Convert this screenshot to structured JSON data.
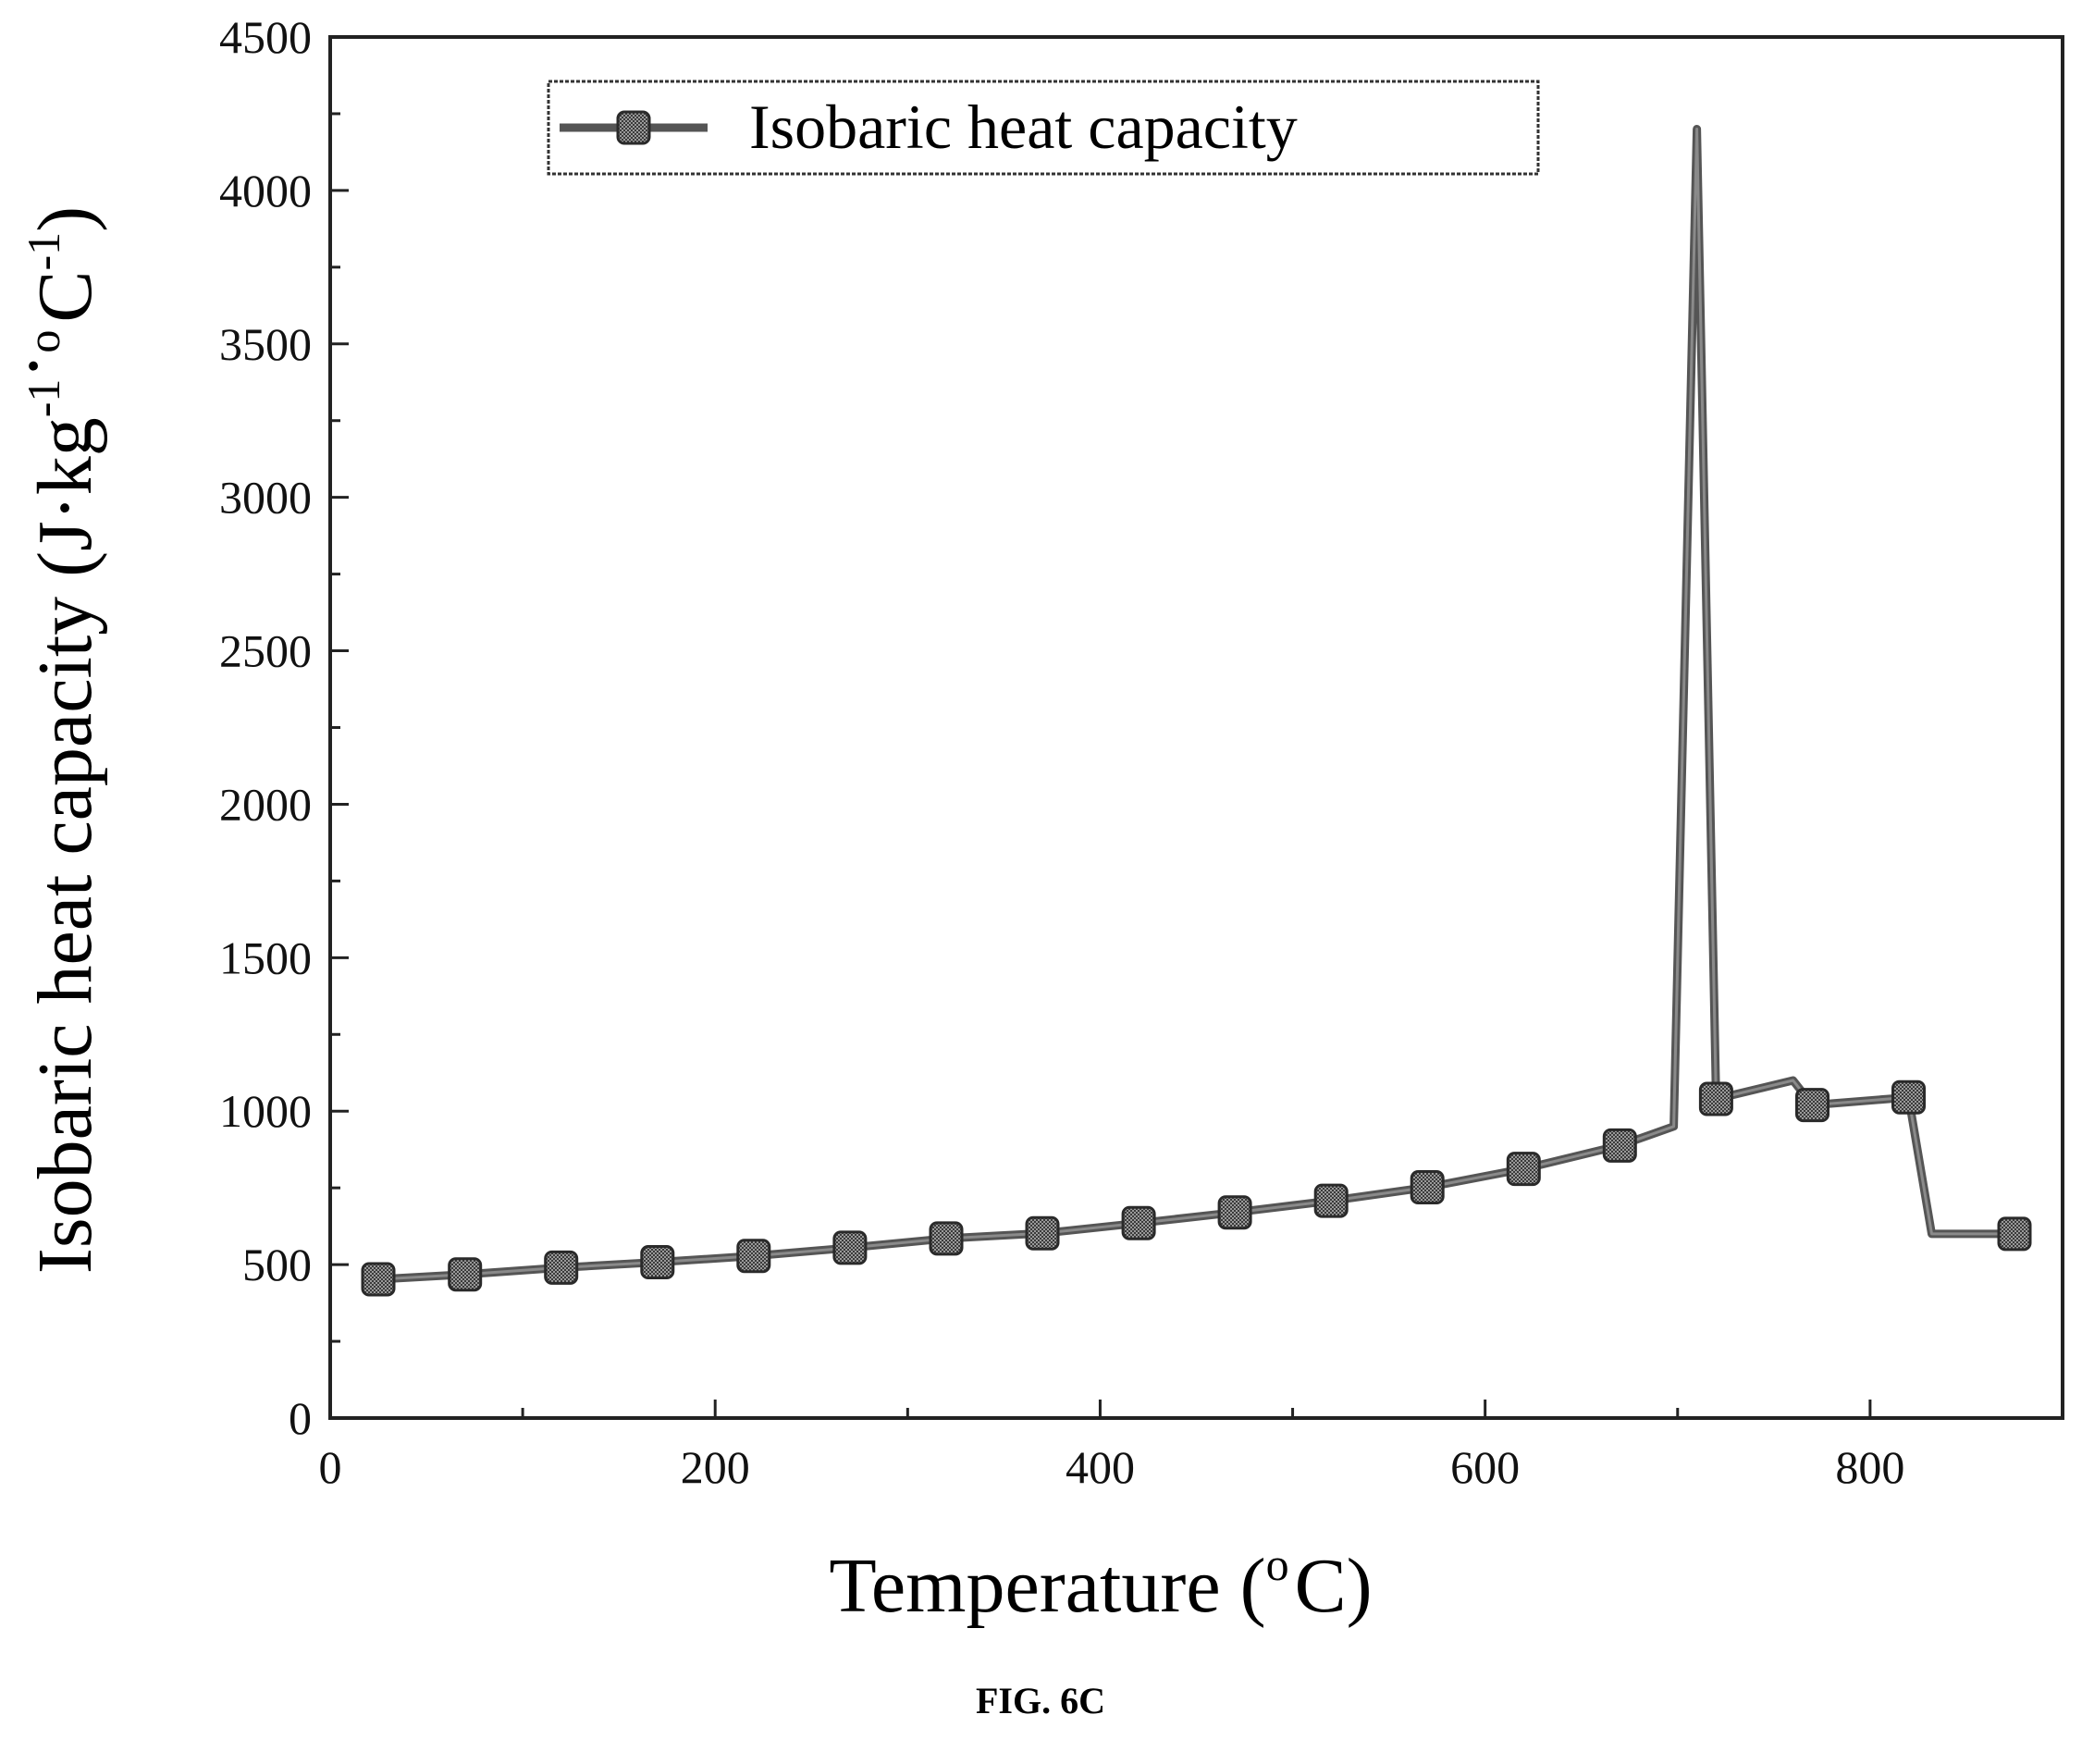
{
  "chart_data": {
    "type": "line",
    "title": "",
    "xlabel": "Temperature (",
    "xlabel_sup": "o",
    "xlabel_end": "C)",
    "ylabel": "Isobaric heat capacity (J·kg",
    "ylabel_sup1": "-1",
    "ylabel_mid": "·",
    "ylabel_sup2": "o",
    "ylabel_unit": "C",
    "ylabel_sup3": "-1",
    "ylabel_end": ")",
    "xlim": [
      0,
      900
    ],
    "ylim": [
      0,
      4500
    ],
    "x_ticks": [
      0,
      200,
      400,
      600,
      800
    ],
    "x_tick_labels": [
      "0",
      "200",
      "400",
      "600",
      "800"
    ],
    "x_minor_ticks": [
      100,
      300,
      500,
      700
    ],
    "y_ticks": [
      0,
      500,
      1000,
      1500,
      2000,
      2500,
      3000,
      3500,
      4000,
      4500
    ],
    "y_tick_labels": [
      "0",
      "500",
      "1000",
      "1500",
      "2000",
      "2500",
      "3000",
      "3500",
      "4000",
      "4500"
    ],
    "y_minor_ticks": [
      250,
      750,
      1250,
      1750,
      2250,
      2750,
      3250,
      3750,
      4250
    ],
    "grid": false,
    "legend_position": "top-center",
    "series": [
      {
        "name": "Isobaric heat capacity",
        "color": "#555555",
        "x": [
          25,
          70,
          120,
          170,
          220,
          270,
          320,
          370,
          420,
          470,
          520,
          570,
          620,
          670,
          698,
          710,
          720,
          760,
          770,
          820,
          832,
          875
        ],
        "y": [
          452,
          468,
          490,
          508,
          528,
          555,
          585,
          602,
          635,
          670,
          708,
          752,
          812,
          888,
          950,
          4200,
          1040,
          1100,
          1020,
          1045,
          600,
          600
        ],
        "markers": [
          true,
          true,
          true,
          true,
          true,
          true,
          true,
          true,
          true,
          true,
          true,
          true,
          true,
          true,
          false,
          false,
          true,
          false,
          true,
          true,
          false,
          true
        ]
      }
    ]
  },
  "caption": "FIG. 6C"
}
